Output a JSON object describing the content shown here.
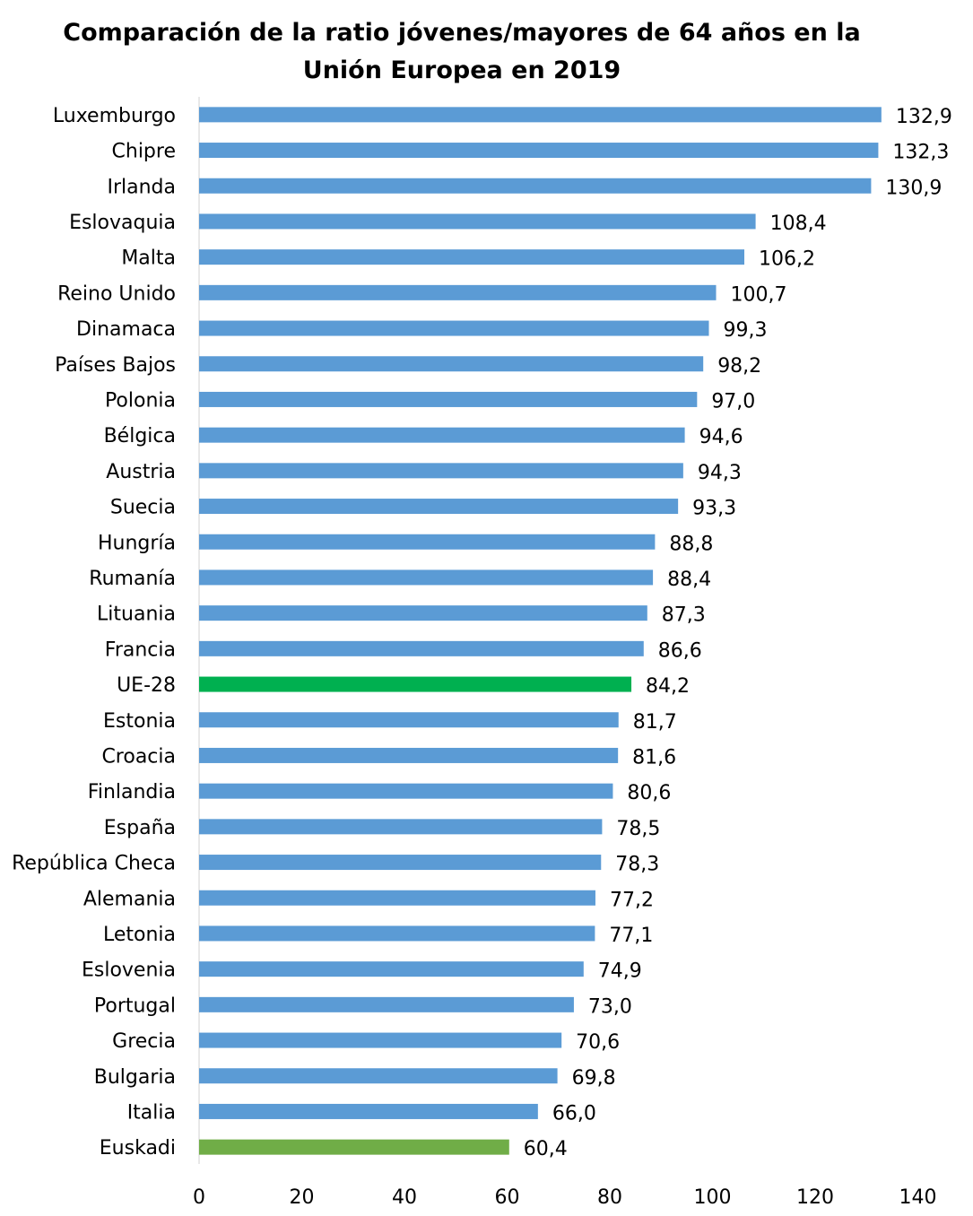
{
  "chart_data": {
    "type": "bar",
    "orientation": "horizontal",
    "title_lines": [
      "Comparación de la ratio jóvenes/mayores de 64 años en la",
      "Unión Europea en 2019"
    ],
    "xlabel": "",
    "ylabel": "",
    "xlim": [
      0,
      140
    ],
    "x_ticks": [
      0,
      20,
      40,
      60,
      80,
      100,
      120,
      140
    ],
    "grid": false,
    "legend": "none",
    "default_color": "#5b9bd5",
    "categories": [
      "Luxemburgo",
      "Chipre",
      "Irlanda",
      "Eslovaquia",
      "Malta",
      "Reino Unido",
      "Dinamaca",
      "Países Bajos",
      "Polonia",
      "Bélgica",
      "Austria",
      "Suecia",
      "Hungría",
      "Rumanía",
      "Lituania",
      "Francia",
      "UE-28",
      "Estonia",
      "Croacia",
      "Finlandia",
      "España",
      "República Checa",
      "Alemania",
      "Letonia",
      "Eslovenia",
      "Portugal",
      "Grecia",
      "Bulgaria",
      "Italia",
      "Euskadi"
    ],
    "values": [
      132.9,
      132.3,
      130.9,
      108.4,
      106.2,
      100.7,
      99.3,
      98.2,
      97.0,
      94.6,
      94.3,
      93.3,
      88.8,
      88.4,
      87.3,
      86.6,
      84.2,
      81.7,
      81.6,
      80.6,
      78.5,
      78.3,
      77.2,
      77.1,
      74.9,
      73.0,
      70.6,
      69.8,
      66.0,
      60.4
    ],
    "value_labels": [
      "132,9",
      "132,3",
      "130,9",
      "108,4",
      "106,2",
      "100,7",
      "99,3",
      "98,2",
      "97,0",
      "94,6",
      "94,3",
      "93,3",
      "88,8",
      "88,4",
      "87,3",
      "86,6",
      "84,2",
      "81,7",
      "81,6",
      "80,6",
      "78,5",
      "78,3",
      "77,2",
      "77,1",
      "74,9",
      "73,0",
      "70,6",
      "69,8",
      "66,0",
      "60,4"
    ],
    "highlight_colors": {
      "UE-28": "#00b050",
      "Euskadi": "#70ad47"
    }
  }
}
